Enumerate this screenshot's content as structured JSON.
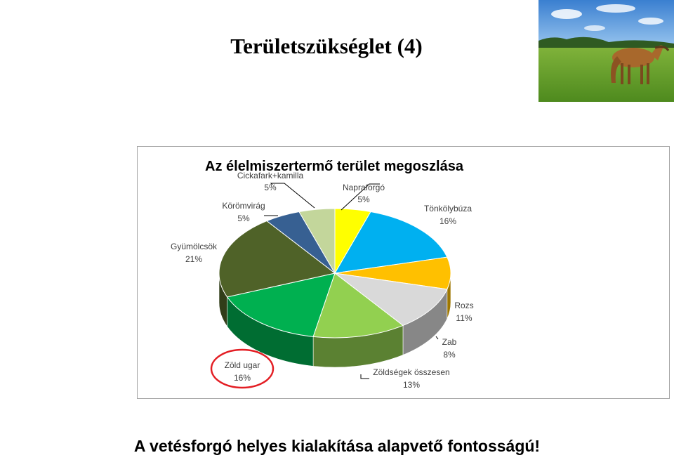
{
  "slide": {
    "title": "Területszükséglet (4)",
    "bottom_caption": "A vetésforgó helyes kialakítása alapvető fontosságú!"
  },
  "photo": {
    "subject": "horse grazing in a green pasture"
  },
  "chart_data": {
    "type": "pie",
    "title": "Az élelmiszertermő terület megoszlása",
    "style": "3d",
    "slices": [
      {
        "label": "Napraforgó",
        "value": 5,
        "display": "5%",
        "color": "#ffff00"
      },
      {
        "label": "Tönkölybúza",
        "value": 16,
        "display": "16%",
        "color": "#00b0f0"
      },
      {
        "label": "",
        "value": 8,
        "display": "",
        "color": "#ffc000"
      },
      {
        "label": "Rozs",
        "value": 11,
        "display": "11%",
        "color": "#d9d9d9"
      },
      {
        "label": "Zöldségek összesen",
        "value": 13,
        "display": "13%",
        "color": "#92d050"
      },
      {
        "label": "Zöld ugar",
        "value": 16,
        "display": "16%",
        "color": "#00b050"
      },
      {
        "label": "Gyümölcsök",
        "value": 21,
        "display": "21%",
        "color": "#4f6228"
      },
      {
        "label": "Körömvirág",
        "value": 5,
        "display": "5%",
        "color": "#376092"
      },
      {
        "label": "Cickafark+kamilla",
        "value": 5,
        "display": "5%",
        "color": "#c3d69b"
      }
    ],
    "labels_shown": [
      {
        "name": "Cickafark+kamilla",
        "pct": "5%"
      },
      {
        "name": "Napraforgó",
        "pct": "5%"
      },
      {
        "name": "Körömvirág",
        "pct": "5%"
      },
      {
        "name": "Tönkölybúza",
        "pct": "16%"
      },
      {
        "name": "Gyümölcsök",
        "pct": "21%"
      },
      {
        "name": "Rozs",
        "pct": "11%"
      },
      {
        "name": "Zab",
        "pct": "8%"
      },
      {
        "name": "Zöld ugar",
        "pct": "16%"
      },
      {
        "name": "Zöldségek összesen",
        "pct": "13%"
      }
    ],
    "highlight": "Zöld ugar",
    "legend": "none"
  }
}
